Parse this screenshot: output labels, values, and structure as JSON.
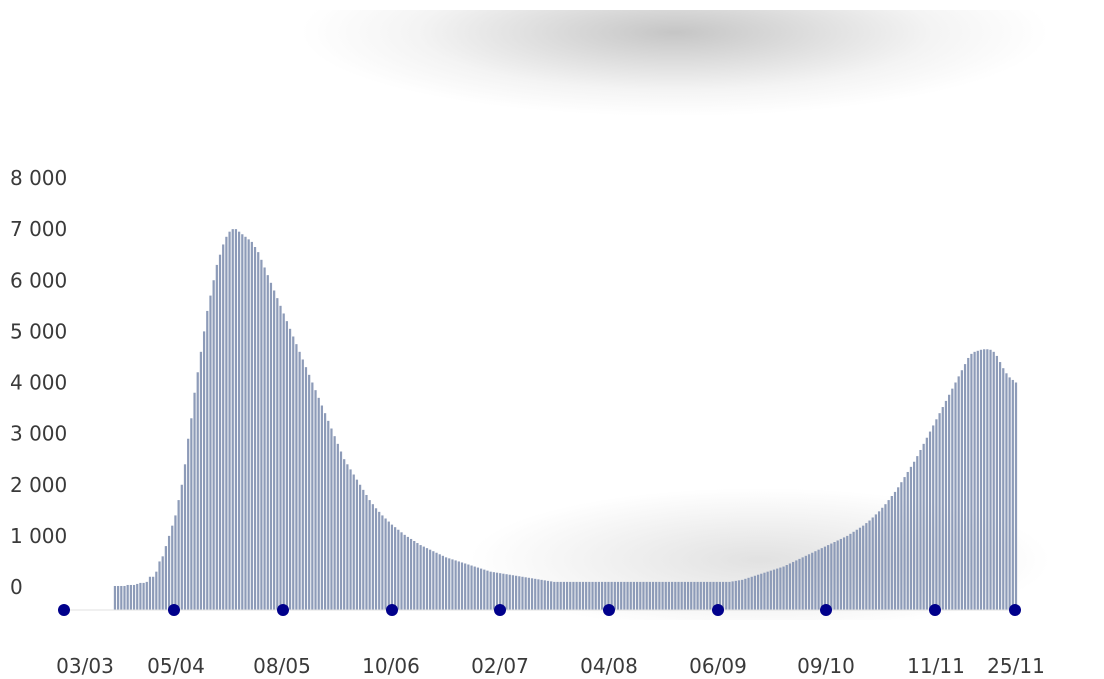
{
  "chart_data": {
    "type": "bar",
    "title": "",
    "xlabel": "",
    "ylabel": "",
    "ylim": [
      0,
      8000
    ],
    "y_ticks": [
      0,
      1000,
      2000,
      3000,
      4000,
      5000,
      6000,
      7000,
      8000
    ],
    "y_tick_labels": [
      "0",
      "1 000",
      "2 000",
      "3 000",
      "4 000",
      "5 000",
      "6 000",
      "7 000",
      "8 000"
    ],
    "x_ticks": [
      "03/03",
      "05/04",
      "08/05",
      "10/06",
      "02/07",
      "04/08",
      "06/09",
      "09/10",
      "11/11",
      "25/11"
    ],
    "grid": false,
    "colors": {
      "bars": "#8d9bb8",
      "markers": "#00008b",
      "text": "#3a3a3a"
    },
    "series": [
      {
        "values": [
          0,
          0,
          0,
          0,
          0,
          0,
          0,
          0,
          0,
          0,
          0,
          0,
          0,
          0,
          0,
          0,
          20,
          20,
          20,
          20,
          40,
          40,
          40,
          60,
          80,
          80,
          100,
          200,
          200,
          300,
          500,
          600,
          800,
          1000,
          1200,
          1400,
          1700,
          2000,
          2400,
          2900,
          3300,
          3800,
          4200,
          4600,
          5000,
          5400,
          5700,
          6000,
          6300,
          6500,
          6700,
          6850,
          6950,
          7000,
          7000,
          6950,
          6900,
          6850,
          6800,
          6750,
          6650,
          6550,
          6400,
          6250,
          6100,
          5950,
          5800,
          5650,
          5500,
          5350,
          5200,
          5050,
          4900,
          4750,
          4600,
          4450,
          4300,
          4150,
          4000,
          3850,
          3700,
          3550,
          3400,
          3250,
          3100,
          2950,
          2800,
          2650,
          2500,
          2400,
          2300,
          2200,
          2100,
          2000,
          1900,
          1800,
          1700,
          1620,
          1540,
          1470,
          1400,
          1340,
          1280,
          1220,
          1170,
          1120,
          1070,
          1020,
          980,
          940,
          900,
          860,
          820,
          790,
          760,
          730,
          700,
          670,
          640,
          610,
          580,
          560,
          540,
          520,
          500,
          480,
          460,
          440,
          420,
          400,
          380,
          360,
          340,
          320,
          300,
          290,
          280,
          270,
          260,
          250,
          240,
          230,
          220,
          210,
          200,
          190,
          180,
          170,
          160,
          150,
          140,
          130,
          120,
          110,
          100,
          100,
          100,
          100,
          100,
          100,
          100,
          100,
          100,
          100,
          100,
          100,
          100,
          100,
          100,
          100,
          100,
          100,
          100,
          100,
          100,
          100,
          100,
          100,
          100,
          100,
          100,
          100,
          100,
          100,
          100,
          100,
          100,
          100,
          100,
          100,
          100,
          100,
          100,
          100,
          100,
          100,
          100,
          100,
          100,
          100,
          100,
          100,
          100,
          100,
          100,
          100,
          100,
          100,
          100,
          100,
          110,
          120,
          130,
          140,
          160,
          180,
          200,
          220,
          240,
          260,
          280,
          300,
          320,
          340,
          360,
          380,
          400,
          430,
          460,
          490,
          520,
          550,
          580,
          610,
          640,
          670,
          700,
          730,
          760,
          790,
          820,
          850,
          880,
          910,
          940,
          970,
          1000,
          1040,
          1080,
          1120,
          1160,
          1200,
          1250,
          1300,
          1360,
          1420,
          1480,
          1550,
          1620,
          1700,
          1780,
          1860,
          1950,
          2050,
          2150,
          2250,
          2350,
          2450,
          2560,
          2680,
          2800,
          2920,
          3040,
          3160,
          3280,
          3400,
          3520,
          3640,
          3760,
          3880,
          4000,
          4120,
          4240,
          4360,
          4480,
          4560,
          4600,
          4620,
          4640,
          4650,
          4650,
          4640,
          4600,
          4520,
          4400,
          4280,
          4180,
          4100,
          4050,
          4000
        ]
      }
    ]
  }
}
